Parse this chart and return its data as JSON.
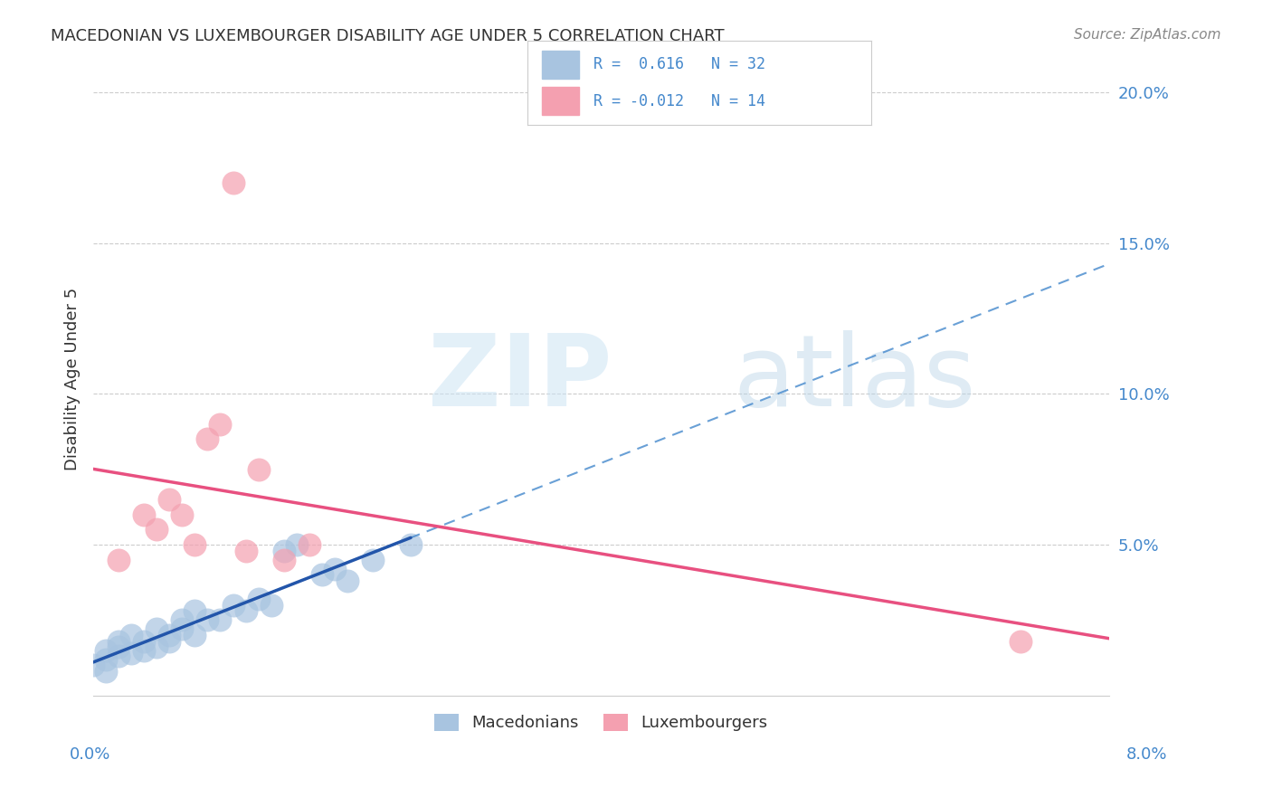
{
  "title": "MACEDONIAN VS LUXEMBOURGER DISABILITY AGE UNDER 5 CORRELATION CHART",
  "source": "Source: ZipAtlas.com",
  "ylabel": "Disability Age Under 5",
  "yaxis_labels": [
    "5.0%",
    "10.0%",
    "15.0%",
    "20.0%"
  ],
  "yaxis_values": [
    0.05,
    0.1,
    0.15,
    0.2
  ],
  "xlim": [
    0.0,
    0.08
  ],
  "ylim": [
    0.0,
    0.21
  ],
  "macedonian_color": "#a8c4e0",
  "luxembourger_color": "#f4a0b0",
  "macedonian_line_color": "#2255aa",
  "luxembourger_line_color": "#e85080",
  "macedonian_trend_color": "#4488cc",
  "mac_x": [
    0.0,
    0.001,
    0.001,
    0.001,
    0.002,
    0.002,
    0.002,
    0.003,
    0.003,
    0.004,
    0.004,
    0.005,
    0.005,
    0.006,
    0.006,
    0.007,
    0.007,
    0.008,
    0.008,
    0.009,
    0.01,
    0.011,
    0.012,
    0.013,
    0.014,
    0.015,
    0.016,
    0.018,
    0.019,
    0.02,
    0.022,
    0.025
  ],
  "mac_y": [
    0.01,
    0.012,
    0.008,
    0.015,
    0.013,
    0.016,
    0.018,
    0.014,
    0.02,
    0.015,
    0.018,
    0.016,
    0.022,
    0.018,
    0.02,
    0.022,
    0.025,
    0.02,
    0.028,
    0.025,
    0.025,
    0.03,
    0.028,
    0.032,
    0.03,
    0.048,
    0.05,
    0.04,
    0.042,
    0.038,
    0.045,
    0.05
  ],
  "lux_x": [
    0.002,
    0.004,
    0.005,
    0.006,
    0.007,
    0.008,
    0.009,
    0.01,
    0.011,
    0.012,
    0.013,
    0.015,
    0.017,
    0.073
  ],
  "lux_y": [
    0.045,
    0.06,
    0.055,
    0.065,
    0.06,
    0.05,
    0.085,
    0.09,
    0.17,
    0.048,
    0.075,
    0.045,
    0.05,
    0.018
  ]
}
